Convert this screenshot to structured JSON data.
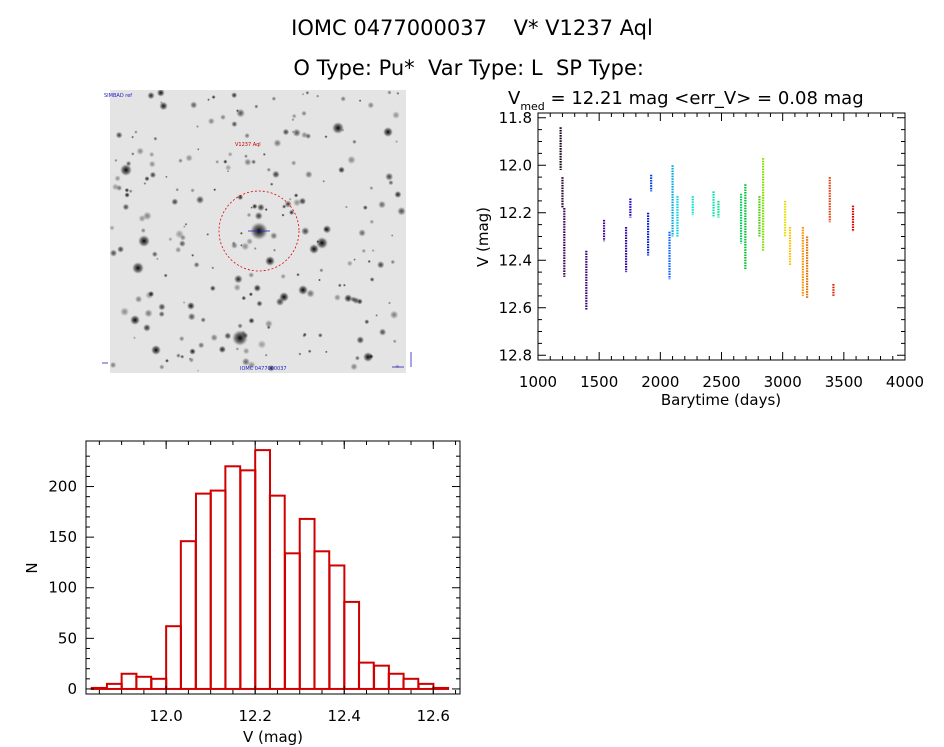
{
  "header": {
    "line1": "IOMC 0477000037    V* V1237 Aql",
    "line2": "O Type: Pu*  Var Type: L  SP Type: "
  },
  "image_panel": {
    "top_left_label": "SIMBAD ref",
    "center_marker_label": "V1237 Aql",
    "bottom_label": "IOMC 0477000037"
  },
  "chart_data": [
    {
      "type": "scatter",
      "title_prefix": "V",
      "title_subscript": "med",
      "title_rest": " = 12.21 mag <err_V> = 0.08 mag",
      "xlabel": "Barytime (days)",
      "ylabel": "V (mag)",
      "xlim": [
        1000,
        4000
      ],
      "ylim": [
        12.82,
        11.78
      ],
      "xticks": [
        1000,
        1500,
        2000,
        2500,
        3000,
        3500,
        4000
      ],
      "xtick_labels": [
        "1000",
        "1500",
        "2000",
        "2500",
        "3000",
        "3500",
        "4000"
      ],
      "yticks": [
        11.8,
        12.0,
        12.2,
        12.4,
        12.6,
        12.8
      ],
      "ytick_labels": [
        "11.8",
        "12.0",
        "12.2",
        "12.4",
        "12.6",
        "12.8"
      ],
      "grid": false,
      "segments": [
        {
          "x": 1185,
          "ymin": 11.84,
          "ymax": 12.02,
          "color": "#150016"
        },
        {
          "x": 1200,
          "ymin": 12.05,
          "ymax": 12.18,
          "color": "#2a0030"
        },
        {
          "x": 1215,
          "ymin": 12.18,
          "ymax": 12.47,
          "color": "#3b0050"
        },
        {
          "x": 1395,
          "ymin": 12.36,
          "ymax": 12.61,
          "color": "#3b0070"
        },
        {
          "x": 1540,
          "ymin": 12.23,
          "ymax": 12.32,
          "color": "#4a0090"
        },
        {
          "x": 1720,
          "ymin": 12.26,
          "ymax": 12.45,
          "color": "#3000a0"
        },
        {
          "x": 1755,
          "ymin": 12.14,
          "ymax": 12.22,
          "color": "#2000c0"
        },
        {
          "x": 1900,
          "ymin": 12.2,
          "ymax": 12.38,
          "color": "#0018d0"
        },
        {
          "x": 1925,
          "ymin": 12.04,
          "ymax": 12.11,
          "color": "#0040e0"
        },
        {
          "x": 2075,
          "ymin": 12.28,
          "ymax": 12.48,
          "color": "#0060ff"
        },
        {
          "x": 2100,
          "ymin": 12.0,
          "ymax": 12.3,
          "color": "#00a8e0"
        },
        {
          "x": 2140,
          "ymin": 12.13,
          "ymax": 12.3,
          "color": "#00d0e0"
        },
        {
          "x": 2265,
          "ymin": 12.13,
          "ymax": 12.21,
          "color": "#00e0d0"
        },
        {
          "x": 2435,
          "ymin": 12.11,
          "ymax": 12.22,
          "color": "#00e0b0"
        },
        {
          "x": 2475,
          "ymin": 12.15,
          "ymax": 12.22,
          "color": "#00e08a"
        },
        {
          "x": 2660,
          "ymin": 12.12,
          "ymax": 12.33,
          "color": "#00d060"
        },
        {
          "x": 2695,
          "ymin": 12.08,
          "ymax": 12.44,
          "color": "#00c030"
        },
        {
          "x": 2810,
          "ymin": 12.13,
          "ymax": 12.3,
          "color": "#40d000"
        },
        {
          "x": 2840,
          "ymin": 11.97,
          "ymax": 12.36,
          "color": "#80e000"
        },
        {
          "x": 3020,
          "ymin": 12.15,
          "ymax": 12.3,
          "color": "#e0e000"
        },
        {
          "x": 3060,
          "ymin": 12.26,
          "ymax": 12.42,
          "color": "#ffc000"
        },
        {
          "x": 3165,
          "ymin": 12.26,
          "ymax": 12.55,
          "color": "#ff9000"
        },
        {
          "x": 3200,
          "ymin": 12.3,
          "ymax": 12.56,
          "color": "#e07000"
        },
        {
          "x": 3385,
          "ymin": 12.05,
          "ymax": 12.24,
          "color": "#e04010"
        },
        {
          "x": 3415,
          "ymin": 12.5,
          "ymax": 12.55,
          "color": "#e02000"
        },
        {
          "x": 3575,
          "ymin": 12.17,
          "ymax": 12.28,
          "color": "#e00000"
        }
      ]
    },
    {
      "type": "bar",
      "subtype": "histogram",
      "xlabel": "V (mag)",
      "ylabel": "N",
      "xlim": [
        11.82,
        12.66
      ],
      "ylim": [
        -5,
        245
      ],
      "xticks": [
        12.0,
        12.2,
        12.4,
        12.6
      ],
      "xtick_labels": [
        "12.0",
        "12.2",
        "12.4",
        "12.6"
      ],
      "yticks": [
        0,
        50,
        100,
        150,
        200
      ],
      "ytick_labels": [
        "0",
        "50",
        "100",
        "150",
        "200"
      ],
      "bar_color": "#d00000",
      "bin_width": 0.0333,
      "bin_starts": [
        11.833,
        11.867,
        11.9,
        11.933,
        11.967,
        12.0,
        12.033,
        12.067,
        12.1,
        12.133,
        12.167,
        12.2,
        12.233,
        12.267,
        12.3,
        12.333,
        12.367,
        12.4,
        12.433,
        12.467,
        12.5,
        12.533,
        12.567,
        12.6
      ],
      "values": [
        1,
        5,
        15,
        12,
        10,
        62,
        146,
        193,
        196,
        220,
        216,
        236,
        191,
        134,
        168,
        136,
        122,
        86,
        26,
        23,
        15,
        10,
        5,
        1
      ]
    }
  ]
}
